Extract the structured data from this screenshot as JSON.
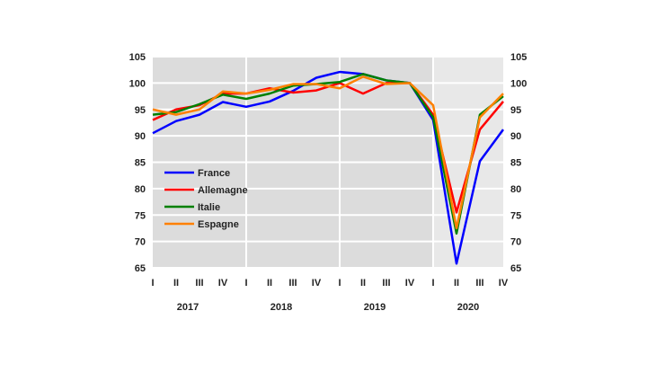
{
  "chart_data": {
    "type": "line",
    "x_quarters": [
      "I",
      "II",
      "III",
      "IV",
      "I",
      "II",
      "III",
      "IV",
      "I",
      "II",
      "III",
      "IV",
      "I",
      "II",
      "III",
      "IV"
    ],
    "years": [
      "2017",
      "2018",
      "2019",
      "2020"
    ],
    "ylim": [
      65,
      105
    ],
    "yticks": [
      65,
      70,
      75,
      80,
      85,
      90,
      95,
      100,
      105
    ],
    "grid": true,
    "legend_position": "left-center",
    "shading": {
      "dark": "#dcdcdc",
      "light": "#e8e8e8"
    },
    "series": [
      {
        "name": "France",
        "color": "#0000ff",
        "values": [
          90.5,
          92.8,
          94,
          96.4,
          95.5,
          96.5,
          98.5,
          101,
          102.1,
          101.7,
          100.5,
          100,
          93,
          65.8,
          85.2,
          91.2
        ]
      },
      {
        "name": "Allemagne",
        "color": "#ff0000",
        "values": [
          93,
          95,
          95.8,
          98,
          98,
          99,
          98.2,
          98.6,
          100,
          98,
          100,
          100,
          94,
          75.5,
          91.2,
          96.5
        ]
      },
      {
        "name": "Italie",
        "color": "#008000",
        "values": [
          94,
          94.5,
          96,
          97.8,
          97,
          98,
          99.5,
          99.8,
          100.2,
          101.7,
          100.5,
          100,
          93.5,
          71.5,
          94,
          97.5
        ]
      },
      {
        "name": "Espagne",
        "color": "#ff8000",
        "values": [
          95,
          94,
          95,
          98.4,
          98,
          98.7,
          99.8,
          99.8,
          99,
          101.2,
          99.8,
          100,
          95.8,
          72.5,
          93.5,
          98
        ]
      }
    ]
  }
}
